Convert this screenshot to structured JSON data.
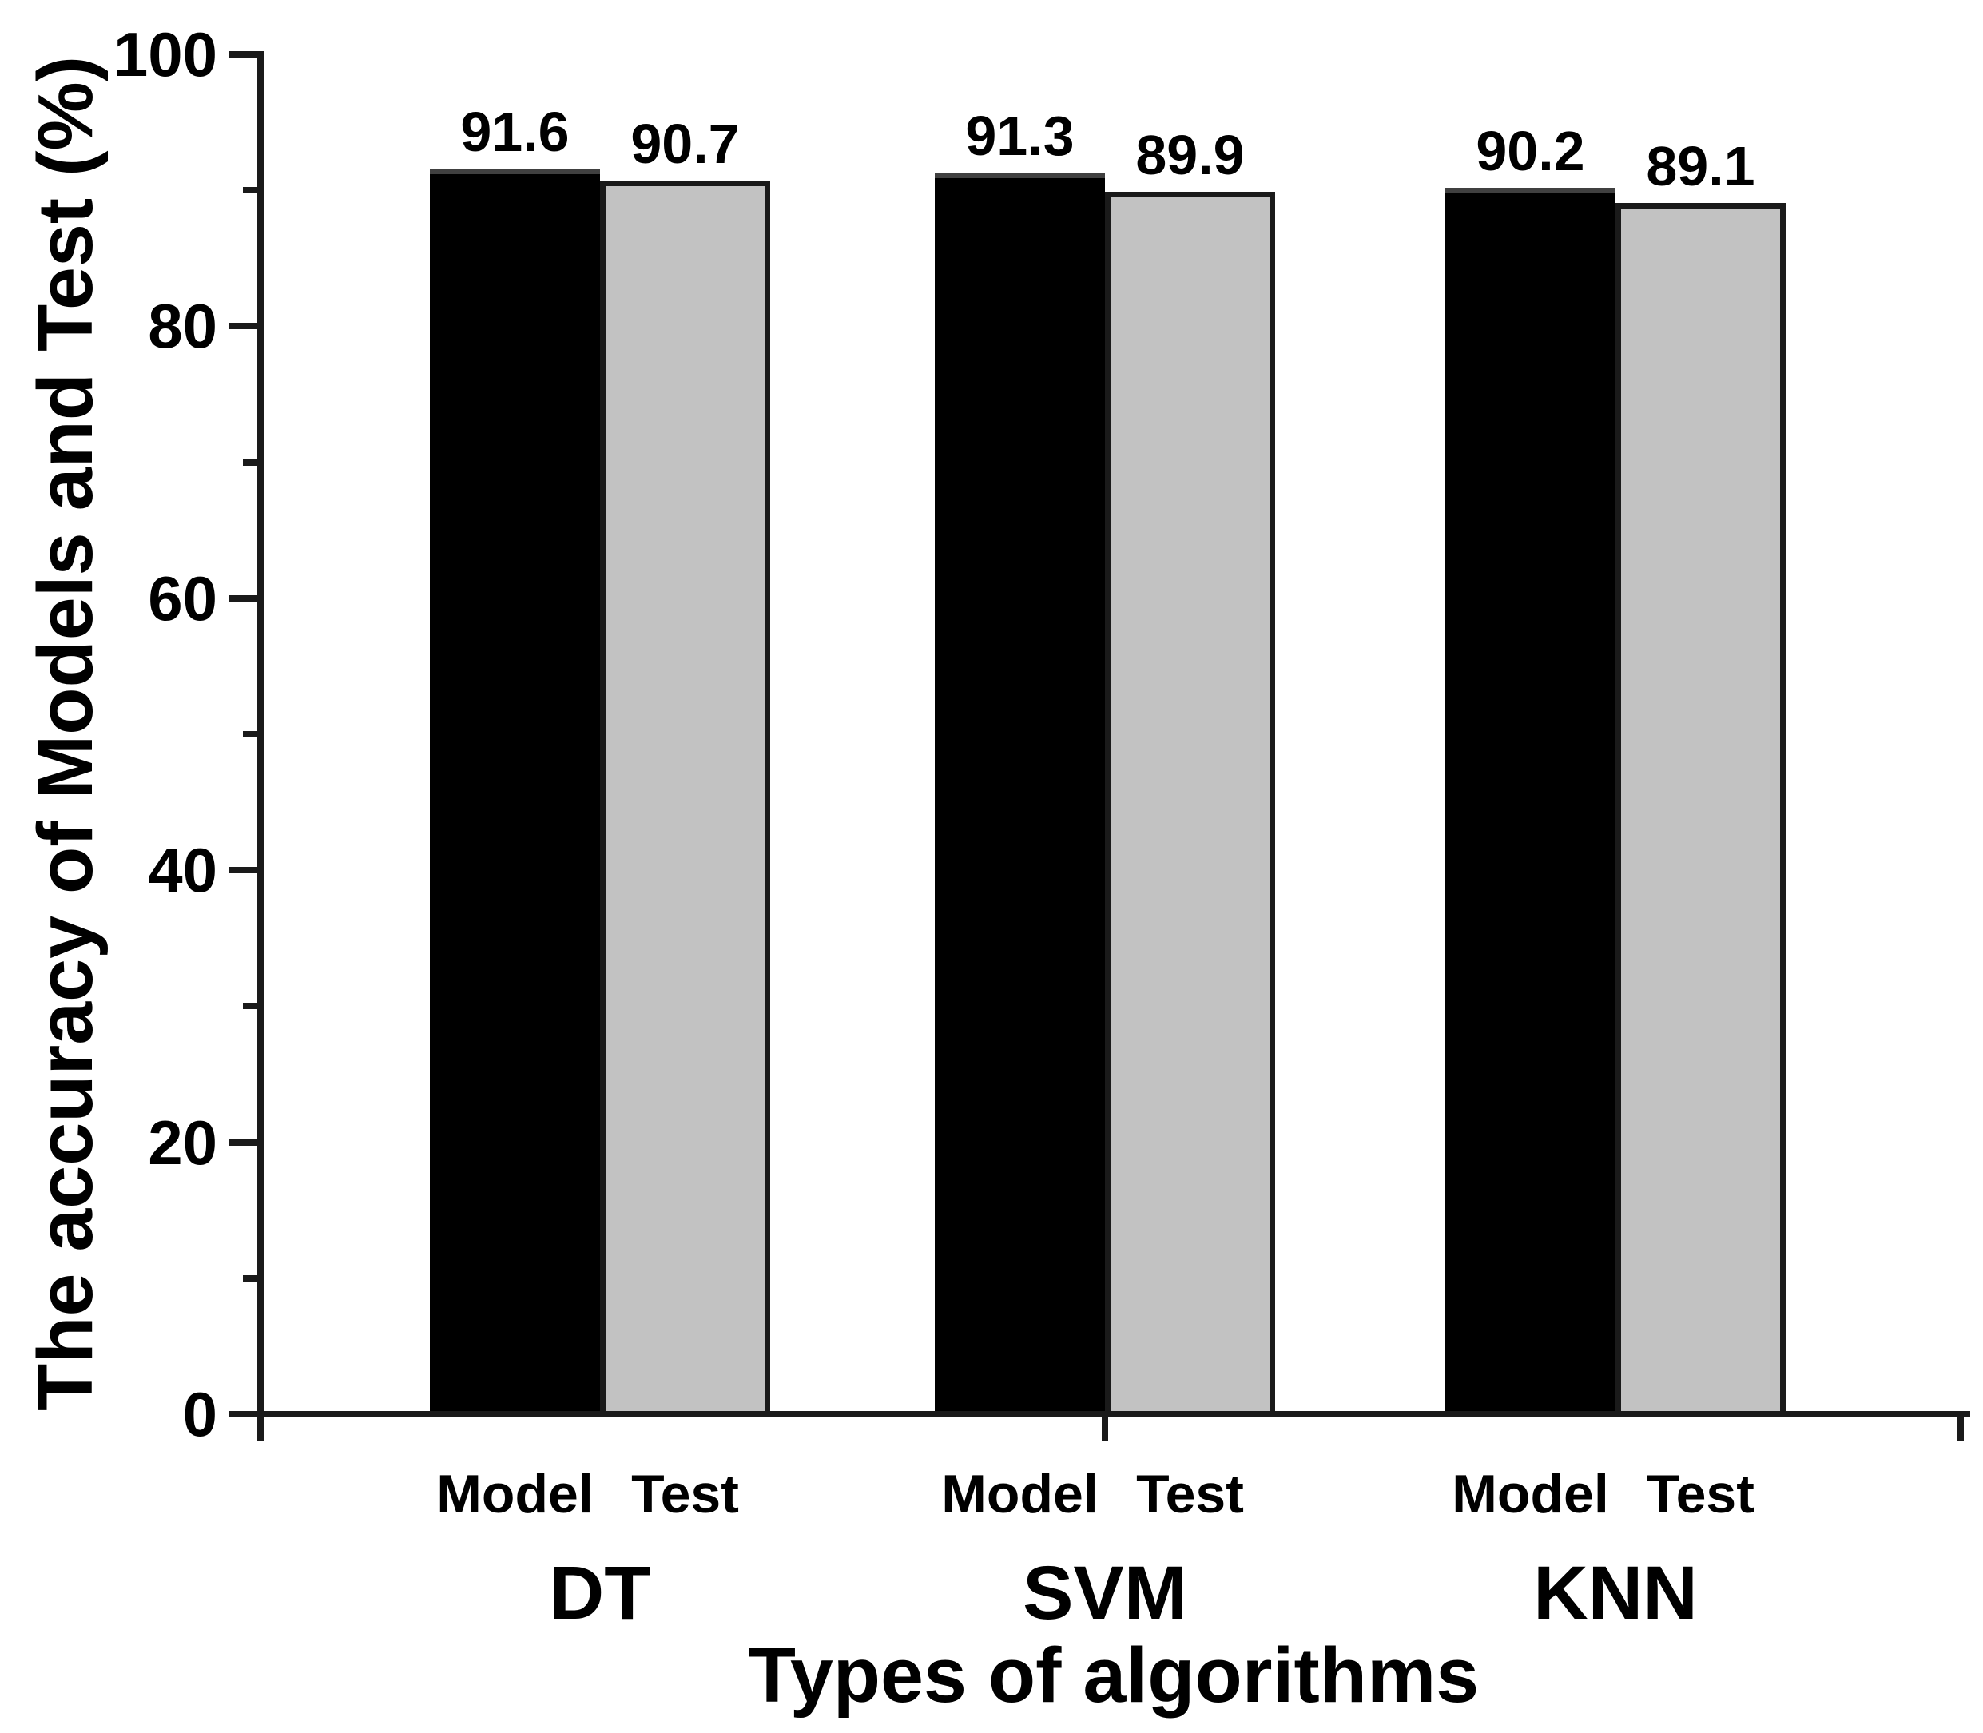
{
  "chart_data": {
    "type": "bar",
    "title": "",
    "xlabel": "Types of algorithms",
    "ylabel": "The accuracy of Models and Test (%)",
    "categories": [
      "DT",
      "SVM",
      "KNN"
    ],
    "series": [
      {
        "name": "Model",
        "color": "#000000",
        "values": [
          91.6,
          91.3,
          90.2
        ]
      },
      {
        "name": "Test",
        "color": "#c2c2c2",
        "values": [
          90.7,
          89.9,
          89.1
        ]
      }
    ],
    "bar_value_label_decimals": 1,
    "ylim": [
      0,
      100
    ],
    "yticks_major": [
      0,
      20,
      40,
      60,
      80,
      100
    ],
    "yticks_minor": [
      10,
      30,
      50,
      70,
      90
    ],
    "grid": false,
    "legend_position": "series-names-under-bars",
    "axis_color": "#1a1a1a",
    "text_color": "#000000",
    "bar_fill_model": "#000000",
    "bar_fill_test": "#c2c2c2"
  }
}
